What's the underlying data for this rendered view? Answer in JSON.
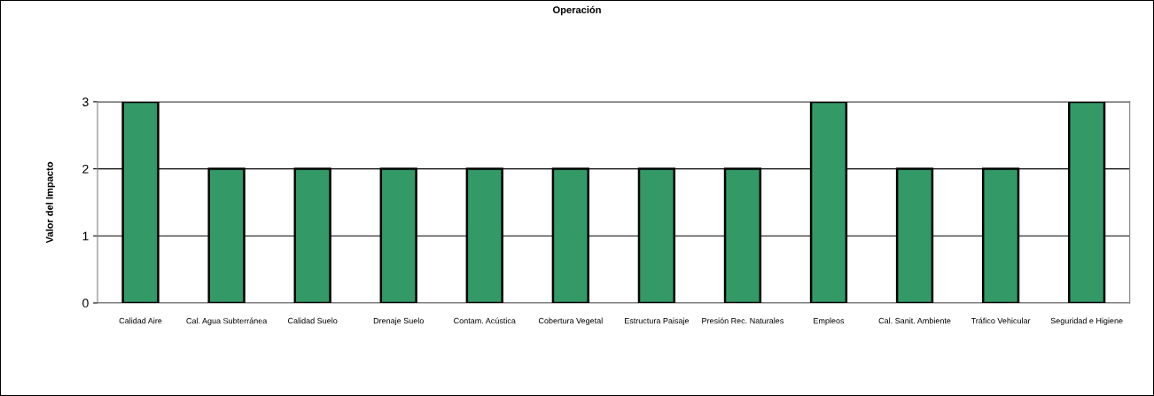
{
  "chart_data": {
    "type": "bar",
    "title": "Operación",
    "ylabel": "Valor del Impacto",
    "categories": [
      "Calidad Aire",
      "Cal. Agua Subterránea",
      "Calidad Suelo",
      "Drenaje Suelo",
      "Contam. Acústica",
      "Cobertura Vegetal",
      "Estructura Paisaje",
      "Presión Rec. Naturales",
      "Empleos",
      "Cal. Sanit. Ambiente",
      "Tráfico Vehicular",
      "Seguridad e Higiene"
    ],
    "values": [
      3,
      2,
      2,
      2,
      2,
      2,
      2,
      2,
      3,
      2,
      2,
      3
    ],
    "color": "#339966",
    "ylim": [
      0,
      3
    ],
    "yticks": [
      0,
      1,
      2,
      3
    ],
    "grid": "y",
    "legend": false
  }
}
